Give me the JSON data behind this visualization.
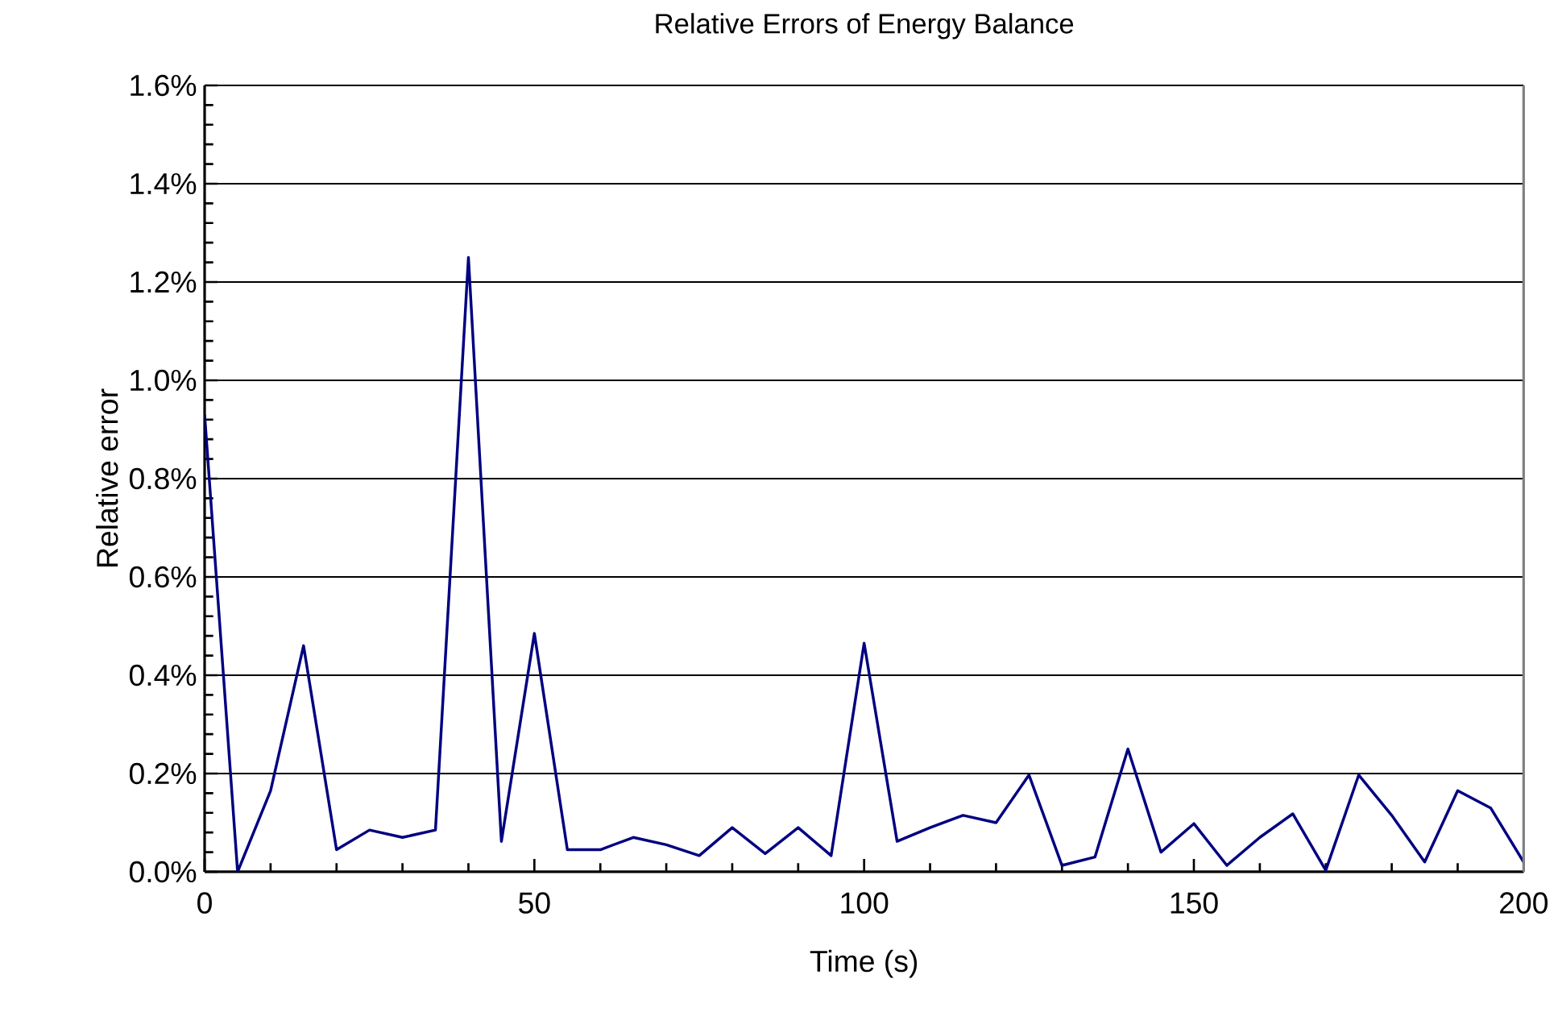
{
  "chart_data": {
    "type": "line",
    "title": "Relative Errors of Energy Balance",
    "xlabel": "Time (s)",
    "ylabel": "Relative error",
    "x": [
      0,
      5,
      10,
      15,
      20,
      25,
      30,
      35,
      40,
      45,
      50,
      55,
      60,
      65,
      70,
      75,
      80,
      85,
      90,
      95,
      100,
      105,
      110,
      115,
      120,
      125,
      130,
      135,
      140,
      145,
      150,
      155,
      160,
      165,
      170,
      175,
      180,
      185,
      190,
      195,
      200
    ],
    "series": [
      {
        "color": "#000080",
        "values": [
          0.93,
          0.0,
          0.165,
          0.46,
          0.045,
          0.085,
          0.07,
          0.085,
          1.25,
          0.062,
          0.485,
          0.045,
          0.045,
          0.07,
          0.055,
          0.033,
          0.09,
          0.037,
          0.09,
          0.033,
          0.465,
          0.062,
          0.09,
          0.115,
          0.1,
          0.197,
          0.013,
          0.03,
          0.25,
          0.04,
          0.098,
          0.013,
          0.07,
          0.118,
          0.003,
          0.197,
          0.115,
          0.02,
          0.165,
          0.13,
          0.02
        ]
      }
    ],
    "xlim": [
      0,
      200
    ],
    "xticks": [
      0,
      50,
      100,
      150,
      200
    ],
    "ylim": [
      0,
      1.6
    ],
    "yticks": [
      {
        "value": 0,
        "label": "0.0%"
      },
      {
        "value": 0.2,
        "label": "0.2%"
      },
      {
        "value": 0.4,
        "label": "0.4%"
      },
      {
        "value": 0.6,
        "label": "0.6%"
      },
      {
        "value": 0.8,
        "label": "0.8%"
      },
      {
        "value": 1.0,
        "label": "1.0%"
      },
      {
        "value": 1.2,
        "label": "1.2%"
      },
      {
        "value": 1.4,
        "label": "1.4%"
      },
      {
        "value": 1.6,
        "label": "1.6%"
      }
    ],
    "grid": "y",
    "marker": "none",
    "line_style": "solid"
  }
}
